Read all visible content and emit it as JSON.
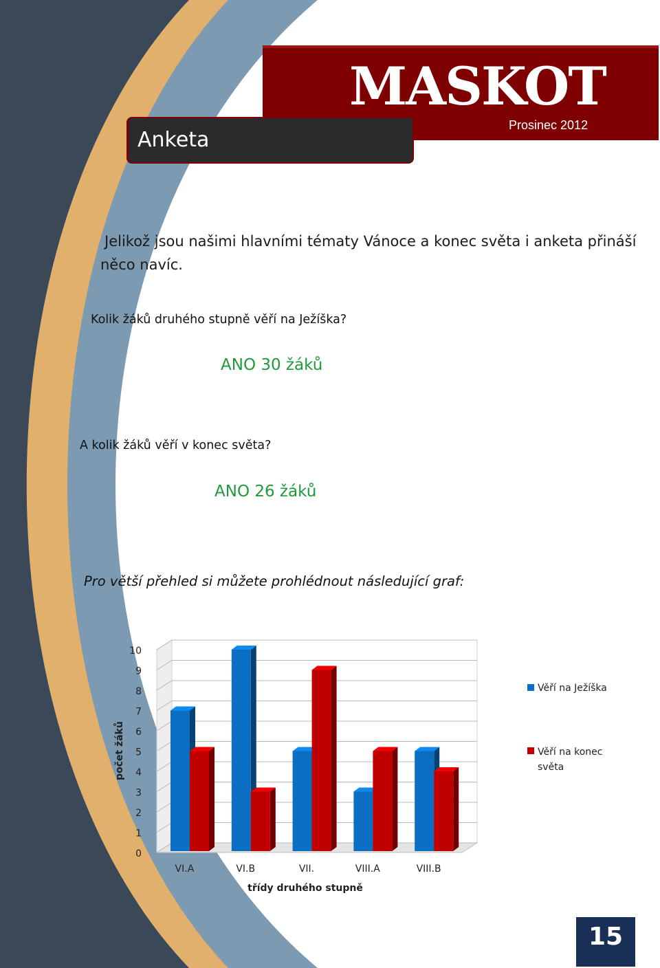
{
  "header": {
    "magazine_title": "MASKOT",
    "issue_date": "Prosinec 2012",
    "section": "Anketa"
  },
  "article": {
    "intro": "Jelikož jsou našimi hlavními tématy Vánoce a konec světa i anketa přináší něco navíc.",
    "question_1": "Kolik žáků druhého stupně věří na Ježíška?",
    "answer_1": "ANO  30 žáků",
    "question_2": "A kolik žáků věří v konec světa?",
    "answer_2": "ANO  26 žáků",
    "chart_intro": "Pro větší přehled si můžete prohlédnout následující graf:"
  },
  "chart_data": {
    "type": "bar",
    "categories": [
      "VI.A",
      "VI.B",
      "VII.",
      "VIII.A",
      "VIII.B"
    ],
    "series": [
      {
        "name": "Věří na Ježíška",
        "values": [
          7,
          10,
          5,
          3,
          5
        ],
        "color": "#0a6fc2"
      },
      {
        "name": "Věří na konec světa",
        "values": [
          5,
          3,
          9,
          5,
          4
        ],
        "color": "#c00000"
      }
    ],
    "xlabel": "třídy druhého stupně",
    "ylabel": "počet žáků",
    "ylim": [
      0,
      10
    ],
    "yticks": [
      "0",
      "1",
      "2",
      "3",
      "4",
      "5",
      "6",
      "7",
      "8",
      "9",
      "10"
    ],
    "grid": true,
    "legend": "right"
  },
  "footer": {
    "page_number": "15"
  }
}
